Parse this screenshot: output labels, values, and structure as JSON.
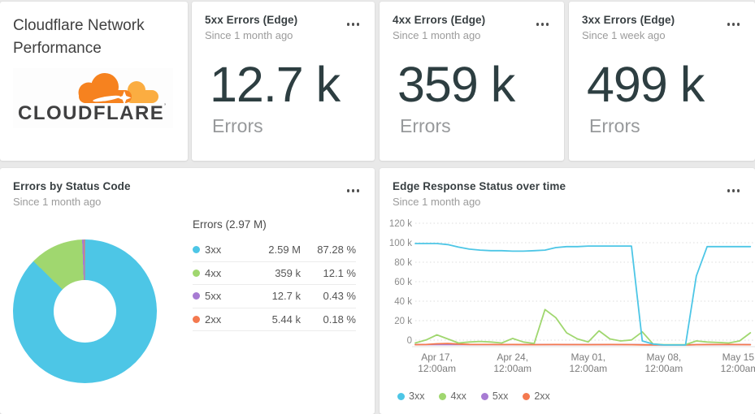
{
  "title_card": {
    "title": "Cloudflare Network Performance",
    "logo_text": "CLOUDFLARE"
  },
  "metric_cards": [
    {
      "title": "5xx Errors (Edge)",
      "subtitle": "Since 1 month ago",
      "value": "12.7 k",
      "unit": "Errors"
    },
    {
      "title": "4xx Errors (Edge)",
      "subtitle": "Since 1 month ago",
      "value": "359 k",
      "unit": "Errors"
    },
    {
      "title": "3xx Errors (Edge)",
      "subtitle": "Since 1 week ago",
      "value": "499 k",
      "unit": "Errors"
    }
  ],
  "donut_card": {
    "title": "Errors by Status Code",
    "subtitle": "Since 1 month ago"
  },
  "timeseries_card": {
    "title": "Edge Response Status over time",
    "subtitle": "Since 1 month ago"
  },
  "chart_data": [
    {
      "type": "pie",
      "style": "donut",
      "title": "Errors by Status Code",
      "subtitle": "Since 1 month ago",
      "total_label": "Errors (2.97 M)",
      "legend_position": "right-table",
      "slices": [
        {
          "label": "3xx",
          "value": "2.59 M",
          "percent": 87.28,
          "percent_label": "87.28 %",
          "color": "#4dc6e6"
        },
        {
          "label": "4xx",
          "value": "359 k",
          "percent": 12.1,
          "percent_label": "12.1 %",
          "color": "#a0d76f"
        },
        {
          "label": "5xx",
          "value": "12.7 k",
          "percent": 0.43,
          "percent_label": "0.43 %",
          "color": "#a77bd3"
        },
        {
          "label": "2xx",
          "value": "5.44 k",
          "percent": 0.18,
          "percent_label": "0.18 %",
          "color": "#f4794f"
        }
      ]
    },
    {
      "type": "line",
      "title": "Edge Response Status over time",
      "subtitle": "Since 1 month ago",
      "grid": "dashed-horizontal",
      "legend_position": "bottom-left",
      "x_start": "Apr 15, 12:00am",
      "x_step": "1 day",
      "ylim_k": [
        0,
        120
      ],
      "values_unit": "thousands",
      "y_ticks": [
        {
          "label": "120 k",
          "value": 120
        },
        {
          "label": "100 k",
          "value": 100
        },
        {
          "label": "80 k",
          "value": 80
        },
        {
          "label": "60 k",
          "value": 60
        },
        {
          "label": "40 k",
          "value": 40
        },
        {
          "label": "20 k",
          "value": 20
        },
        {
          "label": "0",
          "value": 0
        }
      ],
      "x_ticks": [
        {
          "line1": "Apr 17,",
          "line2": "12:00am",
          "index": 2
        },
        {
          "line1": "Apr 24,",
          "line2": "12:00am",
          "index": 9
        },
        {
          "line1": "May 01,",
          "line2": "12:00am",
          "index": 16
        },
        {
          "line1": "May 08,",
          "line2": "12:00am",
          "index": 23
        },
        {
          "line1": "May 15,",
          "line2": "12:00am",
          "index": 30
        }
      ],
      "draw_order": [
        2,
        3,
        1,
        0
      ],
      "series": [
        {
          "name": "3xx",
          "color": "#4dc6e6",
          "values_k": [
            100,
            100,
            100,
            99,
            96.5,
            94.5,
            93.5,
            93,
            93,
            92.5,
            92.5,
            93,
            93.5,
            96,
            97,
            97,
            97.5,
            97.5,
            97.5,
            97.5,
            97.5,
            4,
            1,
            0,
            0,
            0,
            68,
            97,
            97,
            97,
            97,
            97
          ]
        },
        {
          "name": "4xx",
          "color": "#a0d76f",
          "values_k": [
            2,
            5,
            10,
            6,
            2,
            3,
            3.5,
            3,
            2,
            6.5,
            3,
            1.5,
            35,
            27,
            12,
            6,
            3,
            14,
            6,
            4,
            5,
            13,
            1,
            0.3,
            0.3,
            0.3,
            4,
            3,
            2.5,
            2,
            4,
            12
          ]
        },
        {
          "name": "5xx",
          "color": "#a77bd3",
          "values_k": [
            0.4,
            0.4,
            0.4,
            0.4,
            0.4,
            0.4,
            0.4,
            0.4,
            0.4,
            0.4,
            0.4,
            0.4,
            0.4,
            0.4,
            0.4,
            0.4,
            0.4,
            0.4,
            0.4,
            0.4,
            0.4,
            0.3,
            0.1,
            0.1,
            0.1,
            0.1,
            0.3,
            0.4,
            0.4,
            0.4,
            0.4,
            0.4
          ]
        },
        {
          "name": "2xx",
          "color": "#f4794f",
          "values_k": [
            0.3,
            0.5,
            1.2,
            1.5,
            1,
            0.6,
            0.5,
            0.5,
            0.4,
            0.5,
            0.4,
            0.3,
            0.4,
            0.5,
            0.4,
            0.4,
            0.3,
            0.4,
            0.5,
            0.4,
            0.3,
            0.2,
            0.1,
            0.1,
            0.1,
            0.1,
            0.3,
            0.4,
            0.5,
            0.6,
            0.4,
            0.3
          ]
        }
      ]
    }
  ]
}
